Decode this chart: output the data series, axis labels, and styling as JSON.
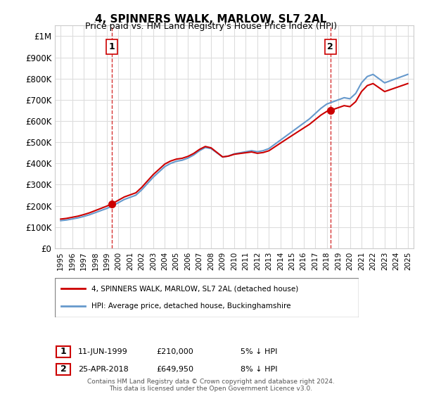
{
  "title": "4, SPINNERS WALK, MARLOW, SL7 2AL",
  "subtitle": "Price paid vs. HM Land Registry's House Price Index (HPI)",
  "legend_label_red": "4, SPINNERS WALK, MARLOW, SL7 2AL (detached house)",
  "legend_label_blue": "HPI: Average price, detached house, Buckinghamshire",
  "transaction1_label": "1",
  "transaction1_date": "11-JUN-1999",
  "transaction1_price": "£210,000",
  "transaction1_note": "5% ↓ HPI",
  "transaction2_label": "2",
  "transaction2_date": "25-APR-2018",
  "transaction2_price": "£649,950",
  "transaction2_note": "8% ↓ HPI",
  "footer": "Contains HM Land Registry data © Crown copyright and database right 2024.\nThis data is licensed under the Open Government Licence v3.0.",
  "ylim": [
    0,
    1050000
  ],
  "yticks": [
    0,
    100000,
    200000,
    300000,
    400000,
    500000,
    600000,
    700000,
    800000,
    900000,
    1000000
  ],
  "ytick_labels": [
    "£0",
    "£100K",
    "£200K",
    "£300K",
    "£400K",
    "£500K",
    "£600K",
    "£700K",
    "£800K",
    "£900K",
    "£1M"
  ],
  "color_red": "#cc0000",
  "color_blue": "#6699cc",
  "color_vline": "#cc0000",
  "background_color": "#ffffff",
  "grid_color": "#dddddd",
  "transaction1_year": 1999.44,
  "transaction1_value": 210000,
  "transaction2_year": 2018.31,
  "transaction2_value": 649950
}
